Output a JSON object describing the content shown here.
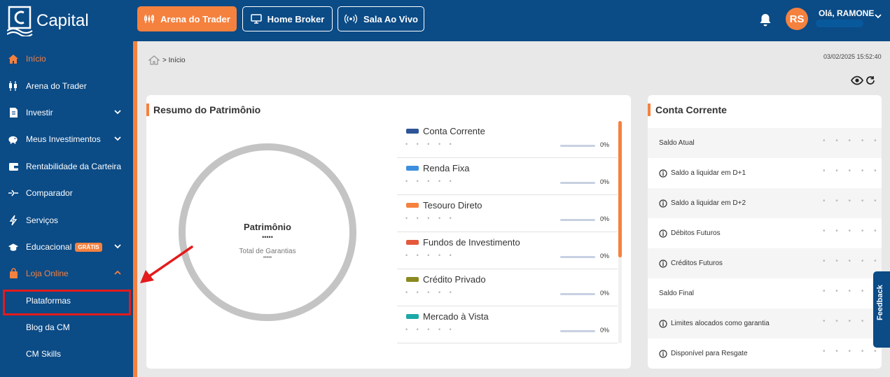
{
  "brand": {
    "name": "Capital"
  },
  "topnav": [
    {
      "label": "Arena do Trader",
      "icon": "candlestick-icon"
    },
    {
      "label": "Home Broker",
      "icon": "monitor-icon"
    },
    {
      "label": "Sala Ao Vivo",
      "icon": "broadcast-icon"
    }
  ],
  "user": {
    "initials": "RS",
    "greeting": "Olá, RAMONE"
  },
  "sidebar": {
    "items": [
      {
        "label": "Início",
        "icon": "home-icon"
      },
      {
        "label": "Arena do Trader",
        "icon": "candlestick-icon"
      },
      {
        "label": "Investir",
        "icon": "document-icon"
      },
      {
        "label": "Meus Investimentos",
        "icon": "piggy-bank-icon"
      },
      {
        "label": "Rentabilidade da Carteira",
        "icon": "wallet-icon"
      },
      {
        "label": "Comparador",
        "icon": "compare-icon"
      },
      {
        "label": "Serviços",
        "icon": "lightning-icon"
      },
      {
        "label": "Educacional",
        "icon": "graduation-cap-icon",
        "badge": "GRÁTIS"
      },
      {
        "label": "Loja Online",
        "icon": "shopping-bag-icon"
      }
    ],
    "subitems": [
      {
        "label": "Plataformas"
      },
      {
        "label": "Blog da CM"
      },
      {
        "label": "CM Skills"
      }
    ]
  },
  "breadcrumb": {
    "text": "> Início"
  },
  "datetime": "03/02/2025 15:52:40",
  "patrimonio": {
    "title": "Resumo do Patrimônio",
    "center_label": "Patrimônio",
    "center_value": "•••••",
    "sub_label": "Total de Garantias",
    "sub_value": "•••••",
    "hidden_dots": "• • • • •",
    "assets": [
      {
        "name": "Conta Corrente",
        "color": "#2e5597",
        "pct": "0%"
      },
      {
        "name": "Renda Fixa",
        "color": "#3b8fde",
        "pct": "0%"
      },
      {
        "name": "Tesouro Direto",
        "color": "#f5813f",
        "pct": "0%"
      },
      {
        "name": "Fundos de Investimento",
        "color": "#e5583b",
        "pct": "0%"
      },
      {
        "name": "Crédito Privado",
        "color": "#8a8a1e",
        "pct": "0%"
      },
      {
        "name": "Mercado à Vista",
        "color": "#1ba9a8",
        "pct": "0%"
      }
    ]
  },
  "conta_corrente": {
    "title": "Conta Corrente",
    "hidden_dots": "• • • • •",
    "rows": [
      {
        "label": "Saldo Atual",
        "info": false
      },
      {
        "label": "Saldo a liquidar em D+1",
        "info": true
      },
      {
        "label": "Saldo a liquidar em D+2",
        "info": true
      },
      {
        "label": "Débitos Futuros",
        "info": true
      },
      {
        "label": "Créditos Futuros",
        "info": true
      },
      {
        "label": "Saldo Final",
        "info": false
      },
      {
        "label": "Limites alocados como garantia",
        "info": true
      },
      {
        "label": "Disponível para Resgate",
        "info": true
      }
    ]
  },
  "feedback": {
    "label": "Feedback"
  },
  "colors": {
    "primary": "#0b4b86",
    "accent": "#f5813f",
    "highlight": "#e31b1b"
  }
}
